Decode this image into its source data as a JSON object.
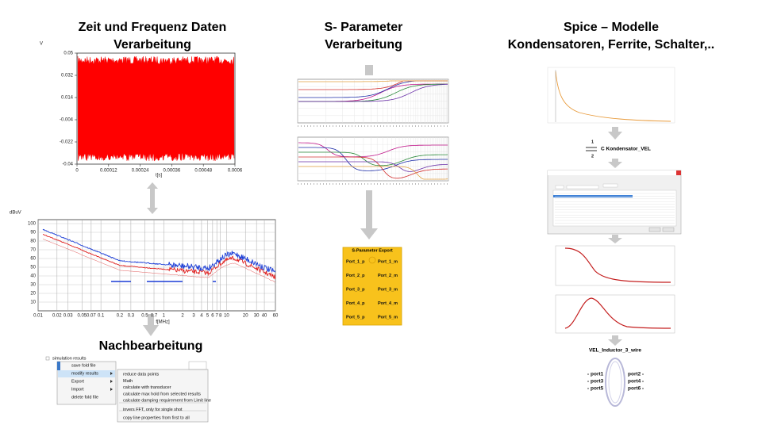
{
  "left": {
    "title": [
      "Zeit und Frequenz Daten",
      "Verarbeitung"
    ],
    "time_chart": {
      "y_unit": "V",
      "yticks": [
        0.05,
        0.032,
        0.014,
        -0.004,
        -0.022,
        -0.04
      ],
      "xticks": [
        0,
        0.00012,
        0.00024,
        0.00036,
        0.00048,
        0.0006
      ],
      "x_label": "t[s]"
    },
    "freq_chart": {
      "y_unit": "dBuV",
      "yticks": [
        100,
        90,
        80,
        70,
        60,
        50,
        40,
        30,
        20,
        10
      ],
      "xticks": [
        0.01,
        0.02,
        0.03,
        0.05,
        0.07,
        0.1,
        0.2,
        0.3,
        0.5,
        0.7,
        1,
        2,
        3,
        4,
        5,
        6,
        7,
        8,
        10,
        20,
        30,
        40,
        60
      ],
      "x_label": "f[MHz]"
    },
    "post_title": "Nachbearbeitung",
    "tree_root": "simulation results",
    "menu": [
      "save fold file",
      "modify results",
      "Export",
      "Import",
      "delete fold file"
    ],
    "submenu": [
      "reduce data points",
      "Math",
      "calculate with transducer",
      "calculate max hold from selected results",
      "calculate damping requirement from Limit line",
      "invers FFT, only for single shot",
      "copy line properties from first to all"
    ]
  },
  "middle": {
    "title": [
      "S- Parameter",
      "Verarbeitung"
    ],
    "export_block": {
      "title": "S-Parameter Export",
      "left_ports": [
        "Port_1_p",
        "Port_2_p",
        "Port_3_p",
        "Port_4_p",
        "Port_5_p"
      ],
      "right_ports": [
        "Port_1_m",
        "Port_2_m",
        "Port_3_m",
        "Port_4_m",
        "Port_5_m"
      ]
    }
  },
  "right": {
    "title": [
      "Spice – Modelle",
      "Kondensatoren, Ferrite, Schalter,.."
    ],
    "capacitor": {
      "pin_top": "1",
      "pin_bottom": "2",
      "label": "C Kondensator_VEL"
    },
    "inductor": {
      "label": "VEL_Inductor_3_wire",
      "left_ports": [
        "port1",
        "port3",
        "port5"
      ],
      "right_ports": [
        "port2",
        "port4",
        "port6"
      ]
    }
  }
}
